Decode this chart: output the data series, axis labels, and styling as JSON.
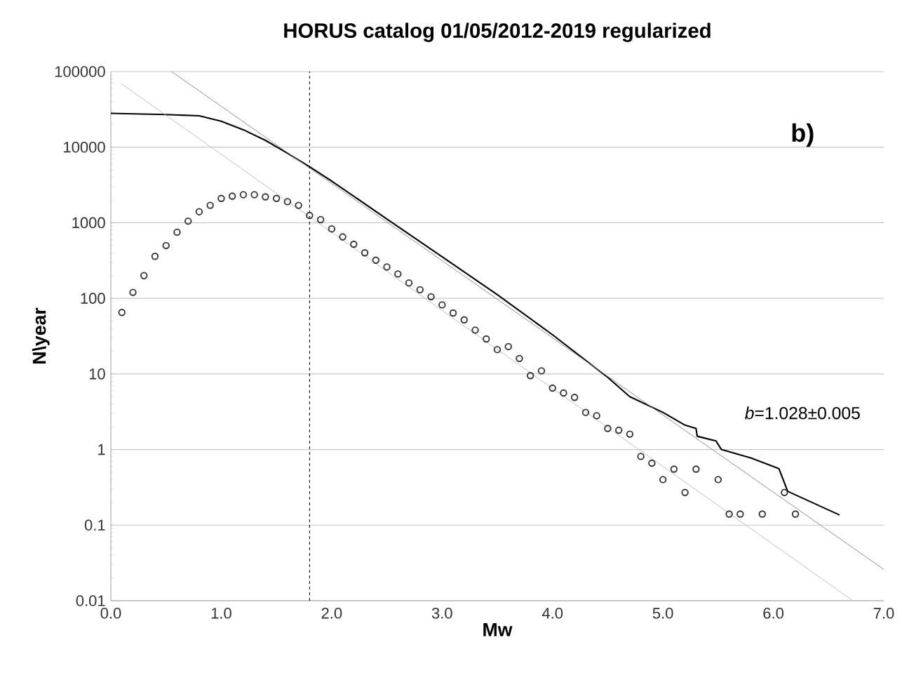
{
  "chart_data": {
    "type": "scatter",
    "title": "HORUS catalog 01/05/2012-2019  regularized",
    "xlabel": "Mw",
    "ylabel": "N\\year",
    "log": "y",
    "grid": "y",
    "xlim": [
      0,
      7
    ],
    "ylim": [
      0.01,
      100000
    ],
    "xticks": [
      {
        "value": 0,
        "label": "0.0"
      },
      {
        "value": 1,
        "label": "1.0"
      },
      {
        "value": 2,
        "label": "2.0"
      },
      {
        "value": 3,
        "label": "3.0"
      },
      {
        "value": 4,
        "label": "4.0"
      },
      {
        "value": 5,
        "label": "5.0"
      },
      {
        "value": 6,
        "label": "6.0"
      },
      {
        "value": 7,
        "label": "7.0"
      }
    ],
    "yticks": [
      0.01,
      0.1,
      1,
      10,
      100,
      1000,
      10000,
      100000
    ],
    "series": [
      {
        "marker": "circle",
        "color": "#333333",
        "x": [
          0.1,
          0.2,
          0.3,
          0.4,
          0.5,
          0.6,
          0.7,
          0.8,
          0.9,
          1.0,
          1.1,
          1.2,
          1.3,
          1.4,
          1.5,
          1.6,
          1.7,
          1.8,
          1.9,
          2.0,
          2.1,
          2.2,
          2.3,
          2.4,
          2.5,
          2.6,
          2.7,
          2.8,
          2.9,
          3.0,
          3.1,
          3.2,
          3.3,
          3.4,
          3.5,
          3.6,
          3.7,
          3.8,
          3.9,
          4.0,
          4.1,
          4.2,
          4.3,
          4.4,
          4.5,
          4.6,
          4.7,
          4.8,
          4.9,
          5.0,
          5.1,
          5.2,
          5.3,
          5.5,
          5.6,
          5.7,
          5.9,
          6.1,
          6.2
        ],
        "values": [
          65,
          120,
          200,
          360,
          500,
          750,
          1050,
          1400,
          1700,
          2100,
          2250,
          2350,
          2350,
          2200,
          2100,
          1900,
          1700,
          1250,
          1100,
          830,
          650,
          520,
          400,
          320,
          260,
          210,
          160,
          130,
          105,
          82,
          64,
          52,
          38,
          29,
          21,
          23,
          16,
          9.5,
          11,
          6.5,
          5.6,
          4.9,
          3.1,
          2.8,
          1.9,
          1.8,
          1.6,
          0.81,
          0.66,
          0.4,
          0.55,
          0.27,
          0.55,
          0.4,
          0.14,
          0.14,
          0.14,
          0.27,
          0.14
        ]
      },
      {
        "type": "line",
        "marker": "none",
        "line_style": "solid",
        "color": "#000000",
        "x": [
          0.0,
          0.5,
          0.8,
          1.0,
          1.2,
          1.4,
          1.6,
          1.8,
          2.0,
          2.5,
          3.0,
          3.5,
          4.0,
          4.5,
          4.7,
          5.0,
          5.2,
          5.3,
          5.31,
          5.48,
          5.53,
          5.8,
          6.05,
          6.13,
          6.6
        ],
        "values": [
          28000,
          27000,
          26000,
          22000,
          17000,
          12300,
          8300,
          5500,
          3560,
          1120,
          355,
          112,
          33,
          9,
          5,
          3.1,
          2.1,
          1.9,
          1.5,
          1.3,
          1.0,
          0.77,
          0.56,
          0.28,
          0.136
        ]
      },
      {
        "type": "line",
        "marker": "none",
        "line_style": "solid",
        "color": "#888888",
        "x": [
          0.55,
          7.0
        ],
        "values": [
          100000,
          0.026
        ]
      },
      {
        "type": "line",
        "marker": "none",
        "line_style": "solid",
        "color": "#bbbbbb",
        "x": [
          0.09,
          6.72
        ],
        "values": [
          70000,
          0.01
        ]
      }
    ],
    "ref_lines": [
      {
        "axis": "x",
        "value": 1.8,
        "color": "#000000",
        "line_style": "dashed"
      }
    ],
    "annotations": [
      "b)",
      "*b*=1.028±0.005"
    ]
  }
}
